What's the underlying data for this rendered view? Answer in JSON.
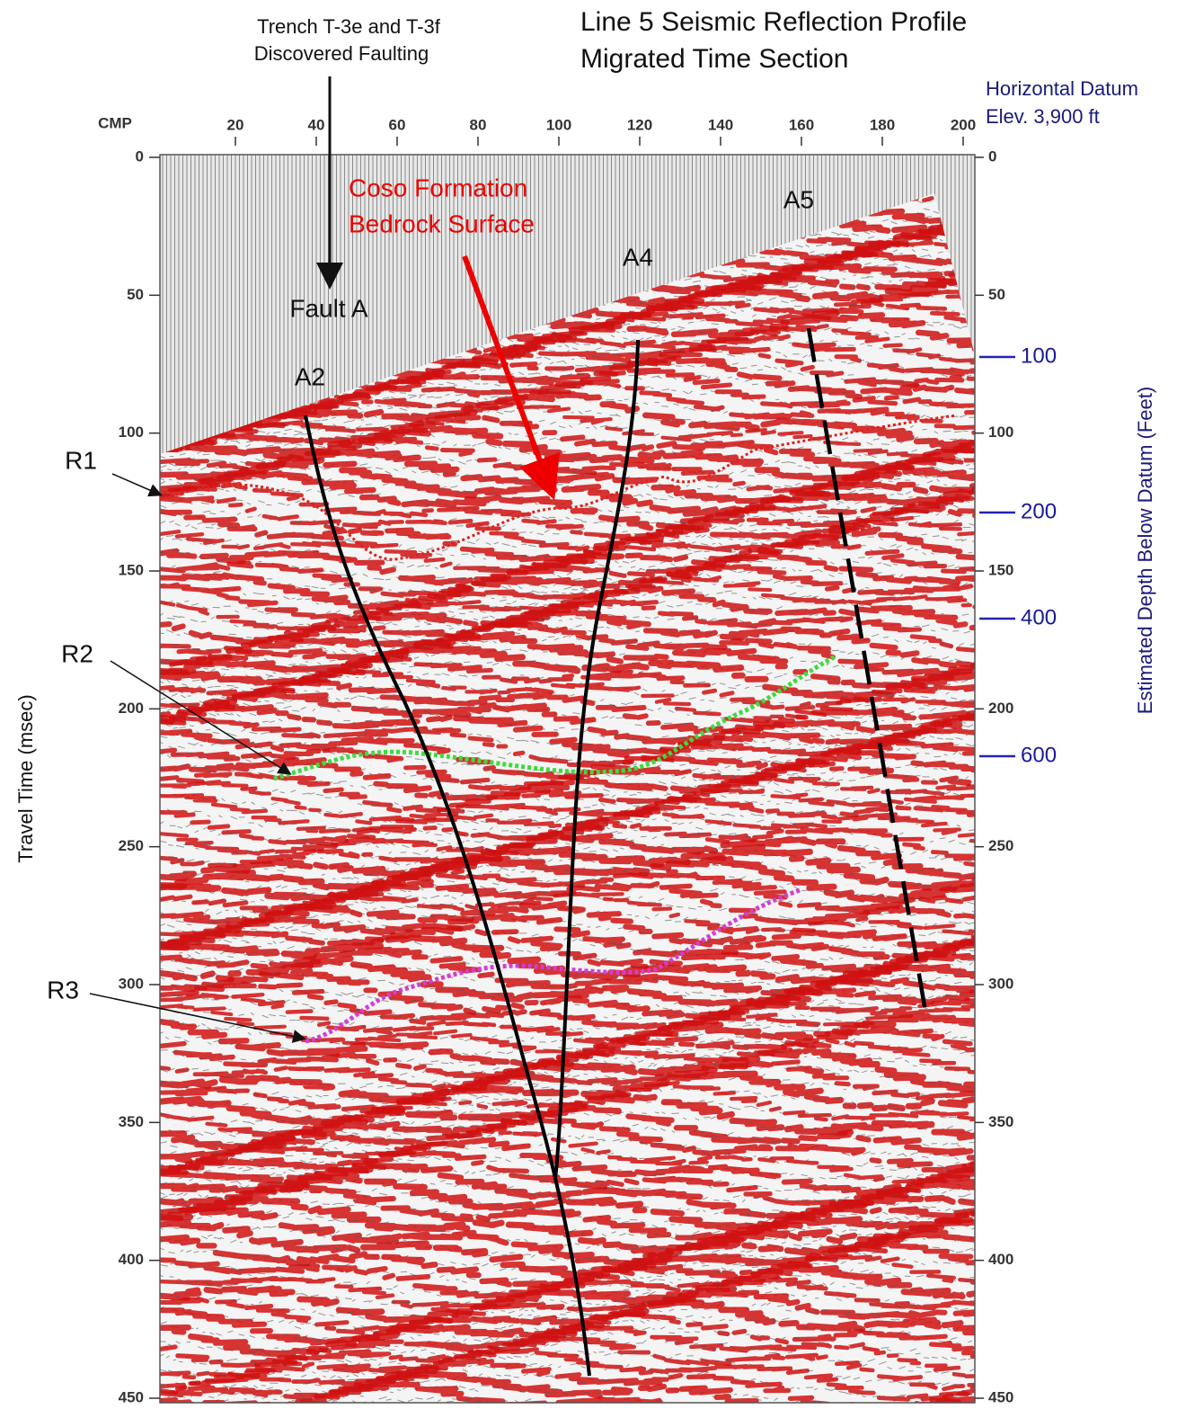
{
  "title": {
    "line1": "Line 5 Seismic Reflection Profile",
    "line2": "Migrated Time Section"
  },
  "trench_note": {
    "line1": "Trench T-3e and T-3f",
    "line2": "Discovered Faulting"
  },
  "datum_note": {
    "line1": "Horizontal Datum",
    "line2": "Elev. 3,900 ft"
  },
  "x_axis": {
    "label": "CMP",
    "ticks": [
      20,
      40,
      60,
      80,
      100,
      120,
      140,
      160,
      180,
      200
    ]
  },
  "y_axis": {
    "label": "Travel Time (msec)",
    "ticks": [
      0,
      50,
      100,
      150,
      200,
      250,
      300,
      350,
      400,
      450
    ]
  },
  "depth_axis": {
    "label": "Estimated Depth Below Datum (Feet)",
    "ticks": [
      100,
      200,
      400,
      600
    ]
  },
  "annotations": {
    "fault_a": "Fault A",
    "a2": "A2",
    "a4": "A4",
    "a5": "A5",
    "bedrock": {
      "line1": "Coso Formation",
      "line2": "Bedrock Surface"
    },
    "r1": "R1",
    "r2": "R2",
    "r3": "R3"
  }
}
